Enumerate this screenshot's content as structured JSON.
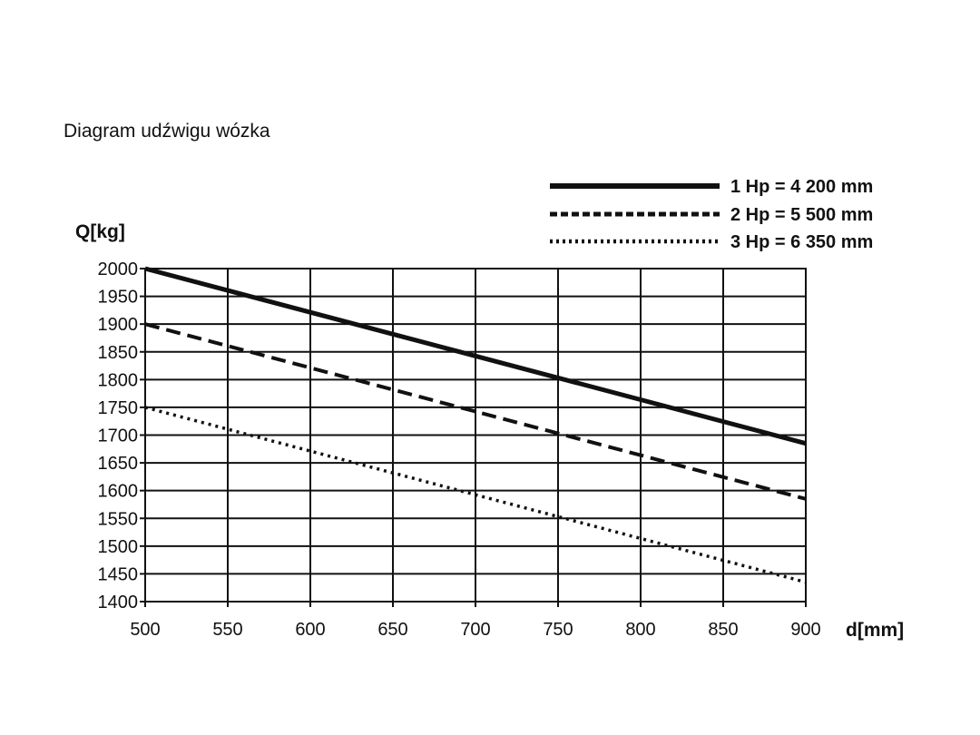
{
  "chart_data": {
    "type": "line",
    "title": "Diagram udźwigu wózka",
    "xlabel": "d[mm]",
    "ylabel": "Q[kg]",
    "xlim": [
      500,
      900
    ],
    "ylim": [
      1400,
      2000
    ],
    "x_ticks": [
      "500",
      "550",
      "600",
      "650",
      "700",
      "750",
      "800",
      "850",
      "900"
    ],
    "y_ticks": [
      "2000",
      "1950",
      "1900",
      "1850",
      "1800",
      "1750",
      "1700",
      "1650",
      "1600",
      "1550",
      "1500",
      "1450",
      "1400"
    ],
    "grid": true,
    "legend_position": "top-right",
    "series": [
      {
        "name": "1 Hp = 4 200 mm",
        "style": "solid",
        "x": [
          500,
          900
        ],
        "values": [
          2000,
          1685
        ]
      },
      {
        "name": "2 Hp = 5 500 mm",
        "style": "dashed",
        "x": [
          500,
          900
        ],
        "values": [
          1900,
          1585
        ]
      },
      {
        "name": "3 Hp = 6 350 mm",
        "style": "dotted",
        "x": [
          500,
          900
        ],
        "values": [
          1750,
          1435
        ]
      }
    ],
    "colors": {
      "line": "#111111",
      "grid": "#111111",
      "background": "#ffffff"
    }
  }
}
